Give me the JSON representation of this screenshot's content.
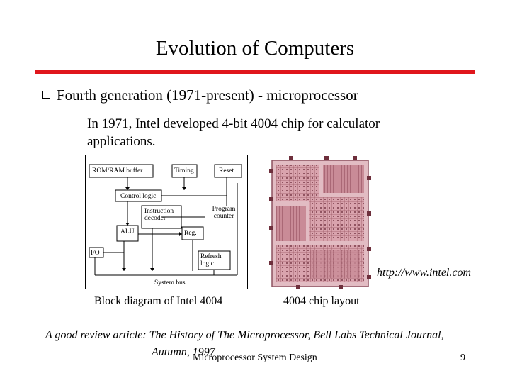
{
  "slide": {
    "title": "Evolution of Computers",
    "bullet": "Fourth generation (1971-present) - microprocessor",
    "dash": "—",
    "sub_bullet": "In 1971, Intel developed 4-bit 4004 chip for calculator applications.",
    "accent_color": "#e0161c"
  },
  "block_diagram": {
    "labels": {
      "rom_ram_buffer": "ROM/RAM buffer",
      "timing": "Timing",
      "reset": "Reset",
      "control_logic": "Control logic",
      "program_counter": "Program counter",
      "instruction_decoder": "Instruction decoder",
      "alu": "ALU",
      "reg": "Reg.",
      "io": "I/O",
      "refresh_logic": "Refresh logic",
      "system_bus": "System bus"
    },
    "caption": "Block diagram of Intel 4004"
  },
  "chip_photo": {
    "caption": "4004 chip layout",
    "source_url": "http://www.intel.com"
  },
  "reference": {
    "line1": "A good review article: The History of The Microprocessor, Bell Labs Technical Journal,",
    "line2": "Autumn, 1997"
  },
  "footer": {
    "course": "Microprocessor System Design",
    "page_number": "9"
  }
}
